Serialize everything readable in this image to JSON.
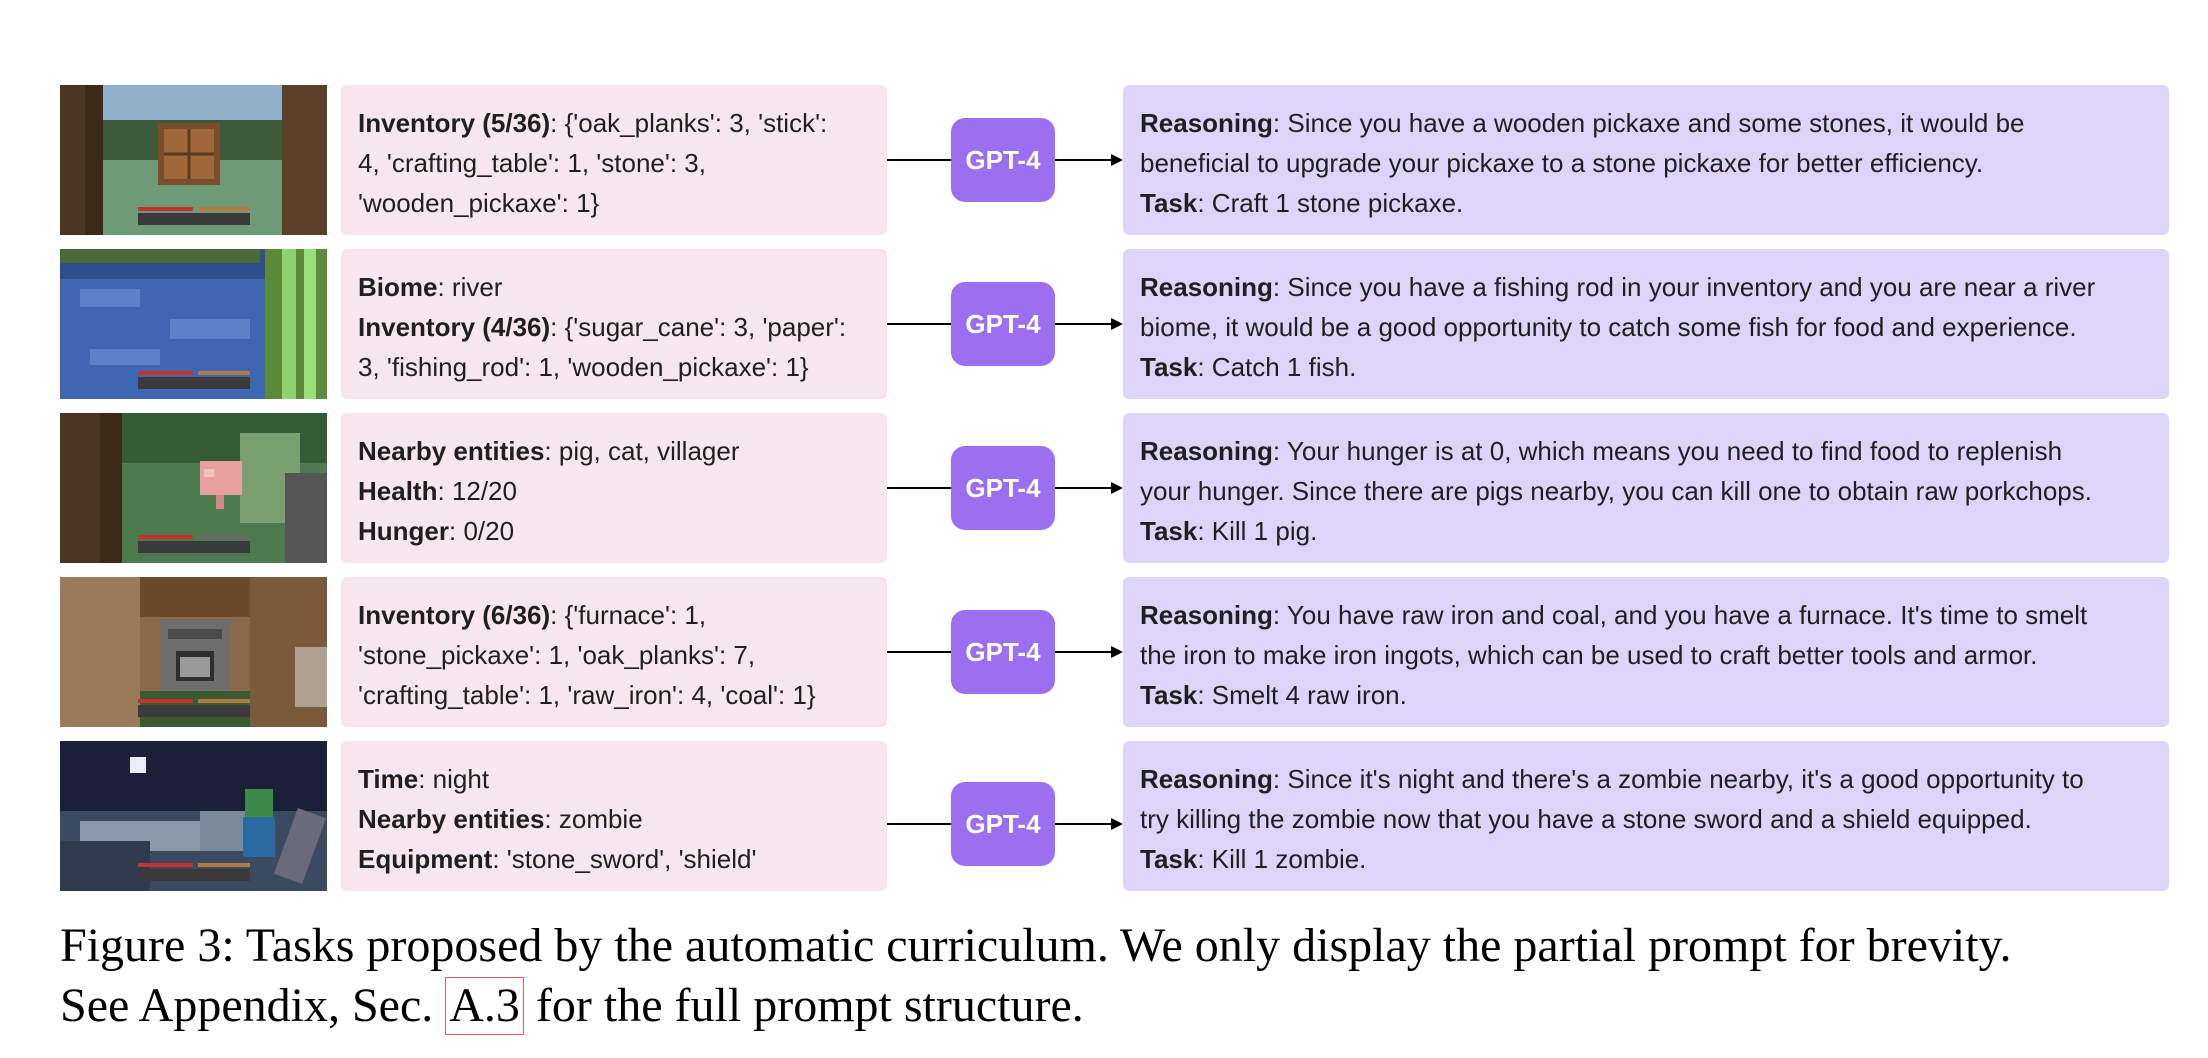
{
  "rows": [
    {
      "obs": [
        {
          "label": "Inventory (5/36)",
          "value": ": {'oak_planks': 3, 'stick':"
        },
        {
          "label": "",
          "value": "4, 'crafting_table': 1, 'stone': 3,"
        },
        {
          "label": "",
          "value": "'wooden_pickaxe': 1}"
        }
      ],
      "model": "GPT-4",
      "reasoning_label": "Reasoning",
      "reasoning_line1": ": Since you have a wooden pickaxe and some stones, it would be",
      "reasoning_line2": "beneficial to upgrade your pickaxe to a stone pickaxe for better efficiency.",
      "task_label": "Task",
      "task": ": Craft 1 stone pickaxe."
    },
    {
      "obs": [
        {
          "label": "Biome",
          "value": ": river"
        },
        {
          "label": "Inventory (4/36)",
          "value": ": {'sugar_cane': 3, 'paper':"
        },
        {
          "label": "",
          "value": "3, 'fishing_rod': 1, 'wooden_pickaxe': 1}"
        }
      ],
      "model": "GPT-4",
      "reasoning_label": "Reasoning",
      "reasoning_line1": ": Since you have a fishing rod in your inventory and you are near a river",
      "reasoning_line2": "biome, it would be a good opportunity to catch some fish for food and experience.",
      "task_label": "Task",
      "task": ": Catch 1 fish."
    },
    {
      "obs": [
        {
          "label": "Nearby entities",
          "value": ": pig, cat, villager"
        },
        {
          "label": "Health",
          "value": ": 12/20"
        },
        {
          "label": "Hunger",
          "value": ": 0/20"
        }
      ],
      "model": "GPT-4",
      "reasoning_label": "Reasoning",
      "reasoning_line1": ": Your hunger is at 0, which means you need to find food to replenish",
      "reasoning_line2": "your hunger. Since there are pigs nearby, you can kill one to obtain raw porkchops.",
      "task_label": "Task",
      "task": ": Kill 1 pig."
    },
    {
      "obs": [
        {
          "label": "Inventory (6/36)",
          "value": ": {'furnace': 1,"
        },
        {
          "label": "",
          "value": "'stone_pickaxe': 1, 'oak_planks': 7,"
        },
        {
          "label": "",
          "value": "'crafting_table': 1, 'raw_iron': 4, 'coal': 1}"
        }
      ],
      "model": "GPT-4",
      "reasoning_label": "Reasoning",
      "reasoning_line1": ": You have raw iron and coal, and you have a furnace. It's time to smelt",
      "reasoning_line2": "the iron to make iron ingots, which can be used to craft better tools and armor.",
      "task_label": "Task",
      "task": ": Smelt 4 raw iron."
    },
    {
      "obs": [
        {
          "label": "Time",
          "value": ": night"
        },
        {
          "label": "Nearby entities",
          "value": ": zombie"
        },
        {
          "label": "Equipment",
          "value": ": 'stone_sword', 'shield'"
        }
      ],
      "model": "GPT-4",
      "reasoning_label": "Reasoning",
      "reasoning_line1": ": Since it's night and there's a zombie nearby, it's a good opportunity to",
      "reasoning_line2": "try killing the zombie now that you have a stone sword and a shield equipped.",
      "task_label": "Task",
      "task": ": Kill 1 zombie."
    }
  ],
  "caption": {
    "line1": "Figure 3: Tasks proposed by the automatic curriculum. We only display the partial prompt for brevity.",
    "line2_before": "See Appendix, Sec. ",
    "ref": "A.3",
    "line2_after": " for the full prompt structure."
  }
}
